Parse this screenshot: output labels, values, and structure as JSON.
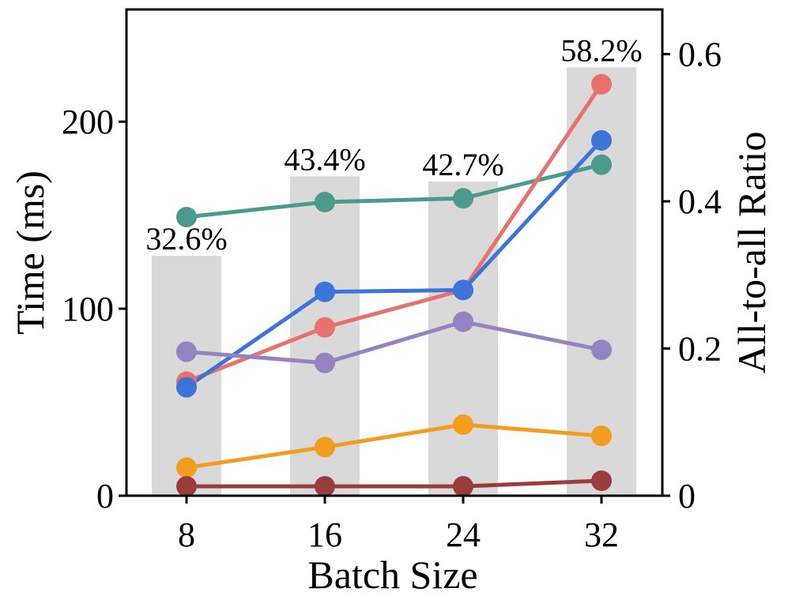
{
  "chart_data": {
    "type": "bar+line",
    "title": "",
    "xlabel": "Batch Size",
    "ylabel": "Time (ms)",
    "y2label": "All-to-all Ratio",
    "categories": [
      "8",
      "16",
      "24",
      "32"
    ],
    "ylim": [
      0,
      260
    ],
    "y2lim": [
      0,
      0.6607
    ],
    "yticks": [
      0,
      100,
      200
    ],
    "y2ticks": [
      0,
      0.2,
      0.4,
      0.6
    ],
    "ytick_labels": [
      "0",
      "100",
      "200"
    ],
    "y2tick_labels": [
      "0",
      "0.2",
      "0.4",
      "0.6"
    ],
    "bars": {
      "name": "All-to-all ratio",
      "color": "#d9d9d9",
      "values": [
        0.326,
        0.434,
        0.427,
        0.582
      ],
      "labels": [
        "32.6%",
        "43.4%",
        "42.7%",
        "58.2%"
      ]
    },
    "series": [
      {
        "name": "teal",
        "color": "#4a9a8e",
        "values": [
          149,
          157,
          159,
          177
        ]
      },
      {
        "name": "red",
        "color": "#e8716d",
        "values": [
          61,
          90,
          110,
          220
        ]
      },
      {
        "name": "blue",
        "color": "#3d74d8",
        "values": [
          58,
          109,
          110,
          190
        ]
      },
      {
        "name": "purple",
        "color": "#9681c1",
        "values": [
          77,
          71,
          93,
          78
        ]
      },
      {
        "name": "orange",
        "color": "#f29d1f",
        "values": [
          15,
          26,
          38,
          32
        ]
      },
      {
        "name": "maroon",
        "color": "#9a3b3c",
        "values": [
          5,
          5,
          5,
          8
        ]
      }
    ]
  }
}
